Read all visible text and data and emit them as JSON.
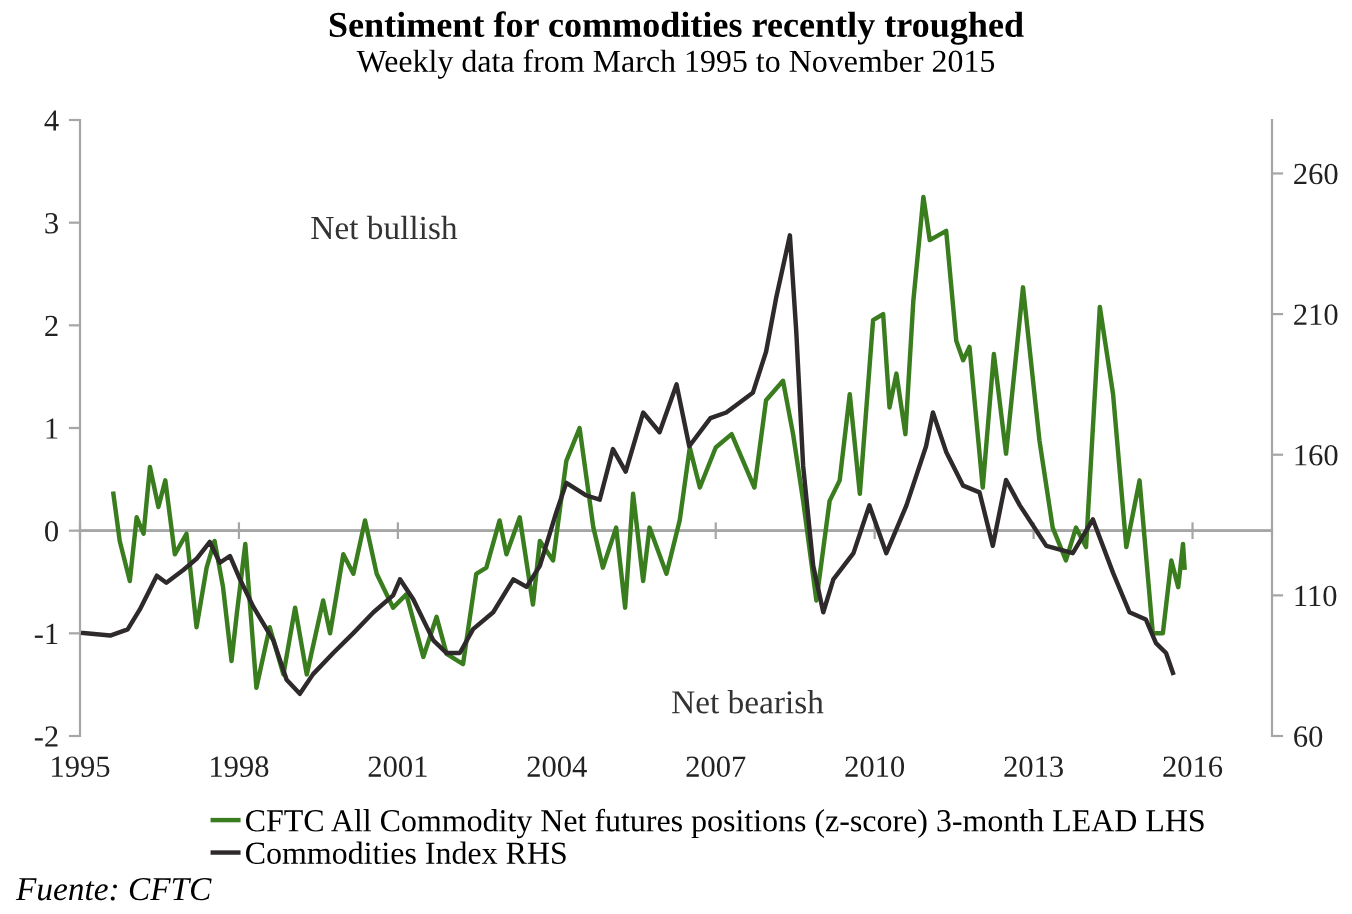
{
  "chart_data": {
    "type": "line",
    "title": "Sentiment for commodities recently troughed",
    "subtitle": "Weekly data from March 1995 to November 2015",
    "annotations": [
      "Net bullish",
      "Net bearish",
      "Fuente: CFTC"
    ],
    "xlim": [
      1995,
      2017.5
    ],
    "xticks": [
      1995,
      1998,
      2001,
      2004,
      2007,
      2010,
      2013,
      2016
    ],
    "ylim": [
      -2,
      4
    ],
    "yticks": [
      -2,
      -1,
      0,
      1,
      2,
      3,
      4
    ],
    "y2lim": [
      60,
      279
    ],
    "y2ticks": [
      60,
      110,
      160,
      210,
      260
    ],
    "ref_lines": [
      {
        "axis": "y",
        "value": 0,
        "color": "#a6a6a6"
      }
    ],
    "grid": false,
    "legend": "bottom",
    "marker": "none",
    "line_style": "solid",
    "series": [
      {
        "name": "CFTC All Commodity Net futures positions (z-score) 3-month LEAD LHS",
        "color": "#3a7d1e",
        "x": [
          1995.63,
          1995.75,
          1995.94,
          1996.07,
          1996.2,
          1996.32,
          1996.48,
          1996.61,
          1996.79,
          1997.01,
          1997.2,
          1997.39,
          1997.54,
          1997.7,
          1997.86,
          1997.96,
          1998.12,
          1998.33,
          1998.58,
          1998.84,
          1999.06,
          1999.28,
          1999.59,
          1999.72,
          1999.97,
          2000.16,
          2000.38,
          2000.6,
          2000.91,
          2001.16,
          2001.48,
          2001.73,
          2001.92,
          2002.23,
          2002.48,
          2002.67,
          2002.92,
          2003.05,
          2003.3,
          2003.55,
          2003.68,
          2003.93,
          2004.18,
          2004.43,
          2004.69,
          2004.87,
          2005.12,
          2005.29,
          2005.44,
          2005.63,
          2005.75,
          2006.07,
          2006.32,
          2006.51,
          2006.7,
          2007.0,
          2007.3,
          2007.73,
          2007.95,
          2008.27,
          2008.46,
          2008.65,
          2008.9,
          2009.15,
          2009.34,
          2009.53,
          2009.72,
          2009.97,
          2010.16,
          2010.28,
          2010.41,
          2010.58,
          2010.73,
          2010.92,
          2011.04,
          2011.35,
          2011.54,
          2011.67,
          2011.79,
          2012.04,
          2012.25,
          2012.48,
          2012.8,
          2013.11,
          2013.36,
          2013.61,
          2013.8,
          2013.99,
          2014.25,
          2014.5,
          2014.75,
          2015.0,
          2015.25,
          2015.44,
          2015.6,
          2015.73,
          2015.82,
          2015.85
        ],
        "values": [
          0.36,
          -0.1,
          -0.49,
          0.13,
          -0.03,
          0.62,
          0.23,
          0.49,
          -0.23,
          -0.03,
          -0.94,
          -0.36,
          -0.1,
          -0.55,
          -1.27,
          -0.81,
          -0.13,
          -1.53,
          -0.94,
          -1.4,
          -0.75,
          -1.4,
          -0.68,
          -1.0,
          -0.23,
          -0.42,
          0.1,
          -0.42,
          -0.75,
          -0.62,
          -1.23,
          -0.84,
          -1.2,
          -1.3,
          -0.42,
          -0.36,
          0.1,
          -0.23,
          0.13,
          -0.72,
          -0.1,
          -0.29,
          0.68,
          1.0,
          0.03,
          -0.36,
          0.03,
          -0.75,
          0.36,
          -0.49,
          0.03,
          -0.42,
          0.1,
          0.81,
          0.42,
          0.81,
          0.94,
          0.42,
          1.27,
          1.46,
          0.94,
          0.29,
          -0.68,
          0.29,
          0.49,
          1.33,
          0.36,
          2.05,
          2.11,
          1.2,
          1.53,
          0.94,
          2.24,
          3.25,
          2.83,
          2.92,
          1.85,
          1.66,
          1.79,
          0.42,
          1.72,
          0.75,
          2.37,
          0.88,
          0.03,
          -0.29,
          0.03,
          -0.16,
          2.18,
          1.33,
          -0.16,
          0.49,
          -1.0,
          -1.0,
          -0.29,
          -0.55,
          -0.13,
          -0.36
        ]
      },
      {
        "name": "Commodities Index RHS",
        "color": "#2e2a2b",
        "axis": "y2",
        "x": [
          1995.06,
          1995.57,
          1995.9,
          1996.13,
          1996.45,
          1996.63,
          1996.95,
          1997.2,
          1997.45,
          1997.64,
          1997.83,
          1998.02,
          1998.27,
          1998.65,
          1998.9,
          1999.15,
          1999.4,
          1999.78,
          2000.16,
          2000.54,
          2000.91,
          2001.04,
          2001.29,
          2001.67,
          2001.92,
          2002.17,
          2002.42,
          2002.8,
          2003.18,
          2003.43,
          2003.68,
          2003.99,
          2004.18,
          2004.56,
          2004.81,
          2005.06,
          2005.3,
          2005.63,
          2005.94,
          2006.26,
          2006.5,
          2006.9,
          2007.2,
          2007.7,
          2007.95,
          2008.14,
          2008.4,
          2008.52,
          2008.65,
          2008.84,
          2009.03,
          2009.22,
          2009.6,
          2009.9,
          2010.22,
          2010.6,
          2010.97,
          2011.1,
          2011.35,
          2011.67,
          2011.98,
          2012.23,
          2012.48,
          2012.74,
          2013.24,
          2013.74,
          2014.12,
          2014.5,
          2014.81,
          2015.12,
          2015.31,
          2015.5,
          2015.63
        ],
        "values": [
          96.6,
          95.7,
          97.9,
          105,
          117,
          114.5,
          119,
          123,
          129,
          121.6,
          124,
          115.7,
          106,
          94,
          80,
          75,
          82,
          89.5,
          96.6,
          104,
          110,
          115.7,
          108.6,
          94,
          89.5,
          89.5,
          98,
          104,
          115.7,
          113,
          120.5,
          139.5,
          150,
          145.5,
          144,
          162,
          154,
          175,
          168,
          185,
          163,
          173,
          175,
          182,
          196.6,
          215.7,
          238,
          203.8,
          156,
          120.5,
          104,
          115.7,
          125,
          142,
          125,
          142,
          163,
          175,
          161,
          149,
          146.6,
          127.6,
          151,
          142,
          127.6,
          125,
          137,
          118,
          104,
          101.4,
          93,
          89.5,
          82.4
        ]
      }
    ]
  }
}
